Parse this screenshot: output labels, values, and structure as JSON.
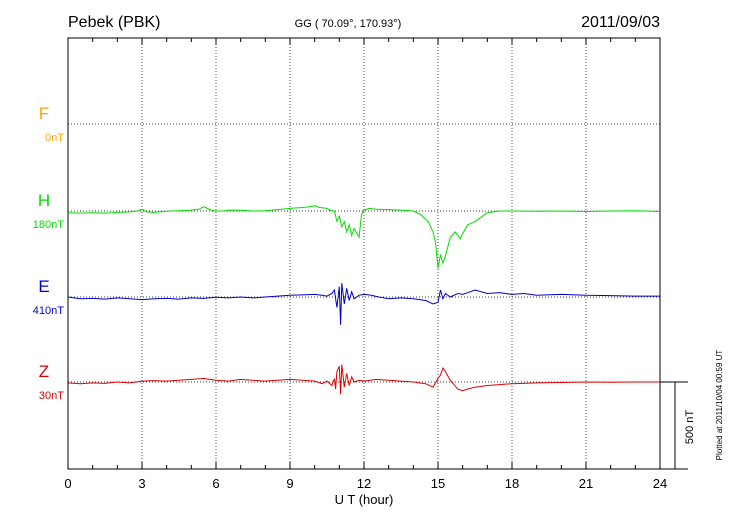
{
  "header": {
    "station": "Pebek (PBK)",
    "coords": "GG ( 70.09°, 170.93°)",
    "date": "2011/09/03"
  },
  "side_note": "Plotted at 2011/10/04 00:59 UT",
  "scale_label": "500 nT",
  "chart_data": {
    "type": "line",
    "xlabel": "U T (hour)",
    "xlim": [
      0,
      24
    ],
    "x_ticks": [
      "0",
      "3",
      "6",
      "9",
      "12",
      "15",
      "18",
      "21",
      "24"
    ],
    "grid": true,
    "series": [
      {
        "name": "F",
        "baseline_label": "0nT",
        "color": "#ffa500",
        "x": [],
        "y": []
      },
      {
        "name": "H",
        "baseline_label": "180nT",
        "color": "#00dd00",
        "x": [
          0,
          0.5,
          1,
          1.5,
          2,
          2.5,
          2.8,
          3.0,
          3.2,
          3.5,
          4,
          4.5,
          5,
          5.3,
          5.5,
          5.8,
          6,
          6.3,
          6.5,
          7,
          7.5,
          8,
          8.5,
          9,
          9.5,
          9.8,
          10.0,
          10.2,
          10.5,
          10.6,
          10.8,
          10.9,
          11.0,
          11.1,
          11.2,
          11.3,
          11.4,
          11.5,
          11.6,
          11.8,
          11.9,
          12.0,
          12.2,
          12.5,
          13,
          13.5,
          14,
          14.3,
          14.6,
          14.8,
          14.9,
          15.0,
          15.1,
          15.2,
          15.3,
          15.5,
          15.7,
          15.9,
          16.0,
          16.2,
          16.5,
          17,
          17.5,
          18,
          19,
          20,
          21,
          22,
          23,
          24
        ],
        "y": [
          -10,
          -12,
          -10,
          -12,
          -8,
          -5,
          0,
          10,
          -5,
          -8,
          -2,
          2,
          5,
          10,
          25,
          5,
          0,
          0,
          5,
          4,
          0,
          2,
          8,
          15,
          20,
          25,
          30,
          20,
          15,
          5,
          0,
          -60,
          -30,
          -90,
          -60,
          -120,
          -80,
          -140,
          -100,
          -150,
          -20,
          5,
          15,
          10,
          8,
          5,
          0,
          -20,
          -60,
          -120,
          -180,
          -330,
          -250,
          -300,
          -260,
          -150,
          -120,
          -160,
          -130,
          -80,
          -60,
          -10,
          0,
          0,
          -2,
          0,
          -3,
          0,
          2,
          -3
        ]
      },
      {
        "name": "E",
        "baseline_label": "410nT",
        "color": "#0000cc",
        "x": [
          0,
          0.5,
          1,
          1.5,
          2,
          2.5,
          3,
          3.5,
          4,
          4.5,
          5,
          5.5,
          6,
          6.5,
          7,
          7.5,
          8,
          8.5,
          9,
          9.5,
          10,
          10.3,
          10.5,
          10.7,
          10.8,
          10.9,
          11.0,
          11.05,
          11.1,
          11.2,
          11.3,
          11.4,
          11.5,
          11.6,
          11.8,
          12.0,
          12.3,
          12.6,
          13,
          13.5,
          14,
          14.5,
          14.8,
          15.0,
          15.1,
          15.2,
          15.3,
          15.5,
          15.8,
          16.0,
          16.3,
          16.5,
          17,
          17.5,
          18,
          18.5,
          19,
          20,
          21,
          22,
          23,
          24
        ],
        "y": [
          0,
          -10,
          -8,
          -12,
          -5,
          -10,
          -15,
          -10,
          -8,
          -12,
          -5,
          -8,
          -2,
          -5,
          0,
          -5,
          0,
          5,
          10,
          12,
          15,
          10,
          5,
          20,
          40,
          -60,
          60,
          -160,
          80,
          -40,
          50,
          -20,
          30,
          -10,
          10,
          15,
          10,
          0,
          -10,
          -5,
          -10,
          -20,
          -40,
          -30,
          40,
          -10,
          20,
          0,
          20,
          15,
          30,
          40,
          20,
          25,
          15,
          20,
          10,
          15,
          10,
          8,
          5,
          5
        ]
      },
      {
        "name": "Z",
        "baseline_label": "30nT",
        "color": "#dd0000",
        "x": [
          0,
          0.5,
          1,
          1.5,
          2,
          2.5,
          3,
          3.5,
          4,
          4.5,
          5,
          5.5,
          6,
          6.5,
          7,
          7.5,
          8,
          8.5,
          9,
          9.5,
          10,
          10.3,
          10.5,
          10.7,
          10.8,
          10.85,
          10.9,
          11.0,
          11.05,
          11.1,
          11.2,
          11.3,
          11.4,
          11.5,
          11.6,
          11.8,
          12.0,
          12.5,
          13,
          13.5,
          14,
          14.5,
          14.8,
          15.0,
          15.1,
          15.2,
          15.3,
          15.5,
          15.8,
          16.0,
          16.2,
          16.5,
          17,
          17.5,
          18,
          19,
          20,
          21,
          22,
          23,
          24
        ],
        "y": [
          -5,
          -10,
          -5,
          -8,
          0,
          -5,
          5,
          8,
          5,
          10,
          15,
          20,
          10,
          5,
          15,
          10,
          5,
          10,
          15,
          10,
          5,
          -10,
          5,
          -20,
          20,
          -40,
          60,
          90,
          -70,
          100,
          -30,
          50,
          -20,
          30,
          0,
          10,
          5,
          15,
          10,
          5,
          0,
          -10,
          -30,
          20,
          40,
          80,
          60,
          10,
          -40,
          -50,
          -40,
          -30,
          -20,
          -15,
          -10,
          -5,
          -3,
          0,
          -2,
          0,
          0
        ]
      }
    ]
  }
}
